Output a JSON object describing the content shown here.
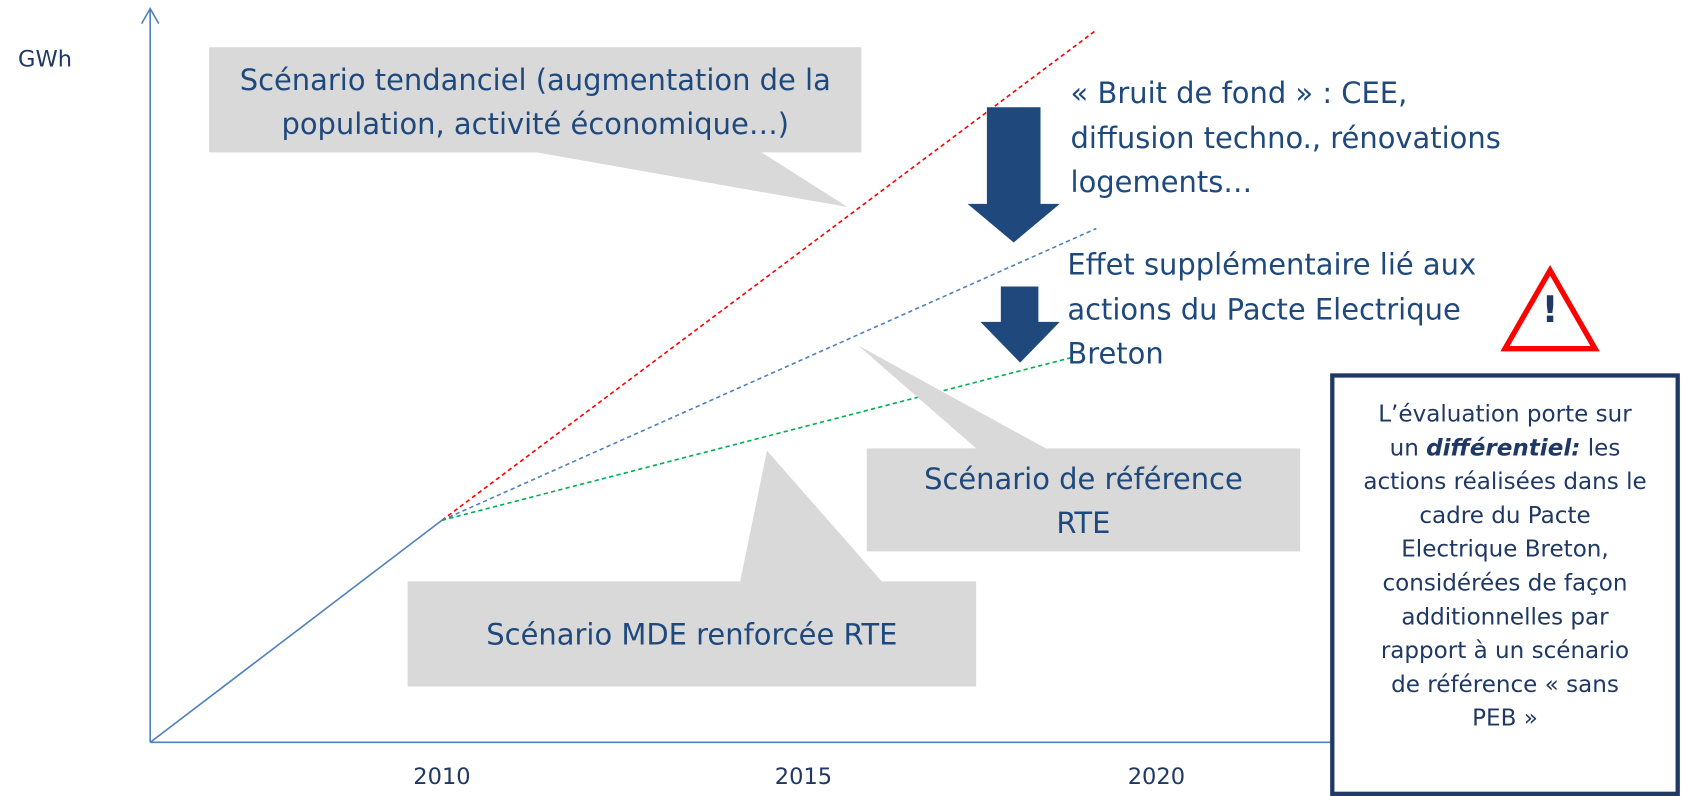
{
  "y_axis_label": "GWh",
  "x_axis_labels": [
    "2010",
    "2015",
    "2020"
  ],
  "callouts": {
    "trend": [
      "Scénario tendanciel (augmentation de la",
      "population, activité économique…)"
    ],
    "reference": [
      "Scénario de référence",
      "RTE"
    ],
    "mde": [
      "Scénario MDE renforcée RTE"
    ]
  },
  "arrow_notes": {
    "background_noise": [
      "« Bruit de fond » : CEE,",
      "diffusion techno., rénovations",
      "logements…"
    ],
    "additional_effect": [
      "Effet supplémentaire lié aux",
      "actions du Pacte Electrique",
      "Breton"
    ]
  },
  "warning_symbol": "!",
  "evaluation_box": {
    "lines": [
      "L’évaluation porte sur",
      {
        "before": "un",
        "emphasis": "différentiel:",
        "after": "les"
      },
      "actions réalisées dans le",
      "cadre du Pacte",
      "Electrique Breton,",
      "considérées de façon",
      "additionnelles par",
      "rapport à un scénario",
      "de référence « sans",
      "PEB »"
    ]
  }
}
